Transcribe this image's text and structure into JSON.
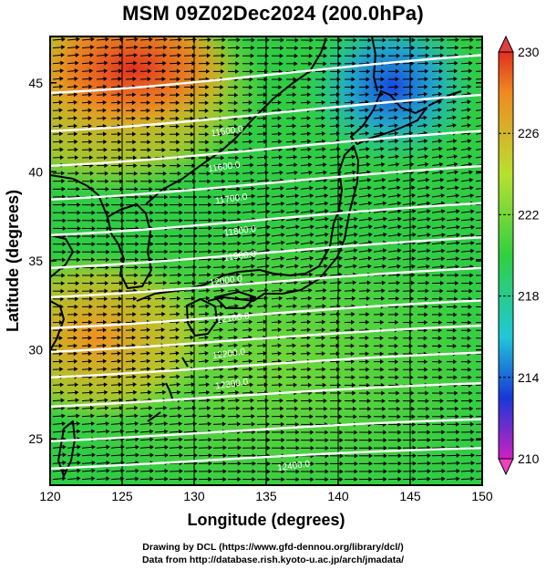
{
  "title": "MSM 09Z02Dec2024 (200.0hPa)",
  "credits": {
    "line1": "Drawing by DCL (https://www.gfd-dennou.org/library/dcl/)",
    "line2": "Data from http://database.rish.kyoto-u.ac.jp/arch/jmadata/"
  },
  "map": {
    "xlabel": "Longitude (degrees)",
    "ylabel": "Latitude  (degrees)",
    "lon_range": [
      120,
      150
    ],
    "lat_range": [
      22.4,
      47.6
    ],
    "lon_ticks": [
      "120",
      "125",
      "130",
      "135",
      "140",
      "145",
      "150"
    ],
    "lat_ticks": [
      "25",
      "30",
      "35",
      "40",
      "45"
    ],
    "grid_lon": [
      125,
      130,
      135,
      140,
      145
    ],
    "contour_labels": [
      {
        "text": "11500.0",
        "lon": 131.2,
        "lat": 42.0
      },
      {
        "text": "11600.0",
        "lon": 131.0,
        "lat": 40.0
      },
      {
        "text": "11700.0",
        "lon": 131.5,
        "lat": 38.2
      },
      {
        "text": "11800.0",
        "lon": 132.1,
        "lat": 36.4
      },
      {
        "text": "11900.0",
        "lon": 132.1,
        "lat": 35.0
      },
      {
        "text": "12000.0",
        "lon": 131.1,
        "lat": 33.6
      },
      {
        "text": "12100.0",
        "lon": 131.6,
        "lat": 31.5
      },
      {
        "text": "12200.0",
        "lon": 131.3,
        "lat": 29.5
      },
      {
        "text": "12300.0",
        "lon": 131.5,
        "lat": 27.8
      },
      {
        "text": "12400.0",
        "lon": 135.8,
        "lat": 23.2
      }
    ]
  },
  "colorbar": {
    "min": 210,
    "max": 230,
    "tick_labels": [
      "230",
      "226",
      "222",
      "218",
      "214",
      "210"
    ]
  },
  "colors": {
    "deep_red": "#e03020",
    "orange": "#f08a20",
    "yellow_green": "#b8e030",
    "green": "#30d040",
    "cyan": "#20c8d8",
    "blue": "#1838d8",
    "magenta": "#d020c0",
    "contour": "#ffffff",
    "arrow": "#000000"
  }
}
